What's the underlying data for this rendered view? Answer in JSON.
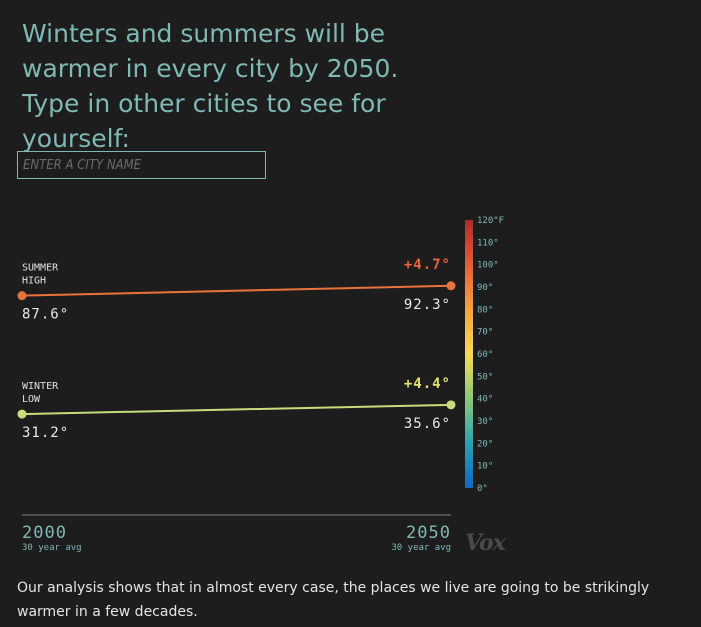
{
  "header": {
    "title": "Winters and summers will be warmer in every city by 2050. Type in other cities to see for yourself:"
  },
  "search": {
    "placeholder": "ENTER A CITY NAME",
    "value": ""
  },
  "chart_data": {
    "type": "line",
    "categories": [
      "2000",
      "2050"
    ],
    "category_subtitles": [
      "30 year avg",
      "30 year avg"
    ],
    "series": [
      {
        "name": "SUMMER HIGH",
        "name_lines": [
          "SUMMER",
          "HIGH"
        ],
        "values": [
          87.6,
          92.3
        ],
        "start_label": "87.6°",
        "end_label": "92.3°",
        "change_label": "+4.7°",
        "color": "#e8743b",
        "change_color": "#e9623a"
      },
      {
        "name": "WINTER LOW",
        "name_lines": [
          "WINTER",
          "LOW"
        ],
        "values": [
          31.2,
          35.6
        ],
        "start_label": "31.2°",
        "end_label": "35.6°",
        "change_label": "+4.4°",
        "color": "#c8dd7a",
        "change_color": "#e8e070"
      }
    ],
    "color_scale": {
      "range": [
        0,
        120
      ],
      "ticks": [
        {
          "value": 120,
          "label": "120°F"
        },
        {
          "value": 110,
          "label": "110°"
        },
        {
          "value": 100,
          "label": "100°"
        },
        {
          "value": 90,
          "label": "90°"
        },
        {
          "value": 80,
          "label": "80°"
        },
        {
          "value": 70,
          "label": "70°"
        },
        {
          "value": 60,
          "label": "60°"
        },
        {
          "value": 50,
          "label": "50°"
        },
        {
          "value": 40,
          "label": "40°"
        },
        {
          "value": 30,
          "label": "30°"
        },
        {
          "value": 20,
          "label": "20°"
        },
        {
          "value": 10,
          "label": "10°"
        },
        {
          "value": 0,
          "label": "0°"
        }
      ],
      "colors": [
        "#1565c0",
        "#2f9fb0",
        "#8bc97c",
        "#f7d85a",
        "#f2a546",
        "#e45c3a",
        "#a72f2b"
      ]
    }
  },
  "logo": {
    "text": "Vox"
  },
  "analysis": {
    "text": "Our analysis shows that in almost every case, the places we live are going to be strikingly warmer in a few decades."
  },
  "colors": {
    "background": "#1d1d1d",
    "accent": "#7fb8b5",
    "axis": "#4f4f4f"
  }
}
